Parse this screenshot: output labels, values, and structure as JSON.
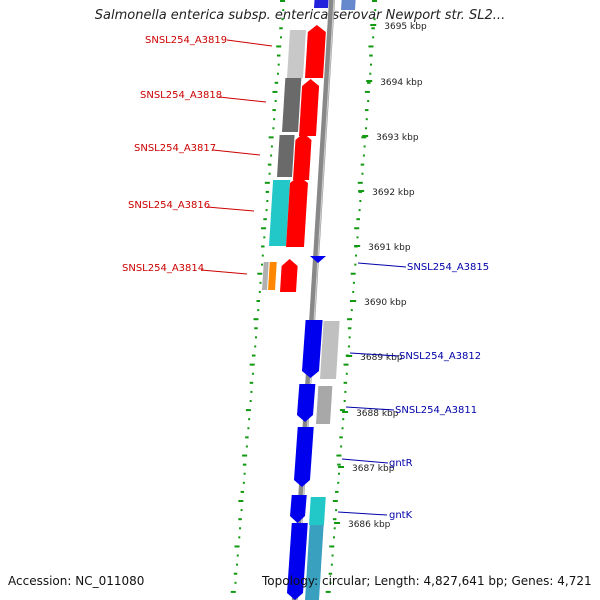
{
  "title": "Salmonella enterica subsp. enterica serovar Newport str. SL2...",
  "footer": {
    "accession": "Accession: NC_011080",
    "summary": "Topology: circular; Length: 4,827,641 bp; Genes: 4,721"
  },
  "colors": {
    "backbone": "#888888",
    "forward_cds": "#ff0000",
    "reverse_cds": "#0000ee",
    "gc_dots": "#119911",
    "label_forward": "#cc0000",
    "label_reverse": "#0000aa"
  },
  "ticks": [
    {
      "label": "3695 kbp"
    },
    {
      "label": "3694 kbp"
    },
    {
      "label": "3693 kbp"
    },
    {
      "label": "3692 kbp"
    },
    {
      "label": "3691 kbp"
    },
    {
      "label": "3690 kbp"
    },
    {
      "label": "3689 kbp"
    },
    {
      "label": "3688 kbp"
    },
    {
      "label": "3687 kbp"
    },
    {
      "label": "3686 kbp"
    }
  ],
  "genes_forward": [
    {
      "label": "SNSL254_A3819"
    },
    {
      "label": "SNSL254_A3818"
    },
    {
      "label": "SNSL254_A3817"
    },
    {
      "label": "SNSL254_A3816"
    },
    {
      "label": "SNSL254_A3814"
    }
  ],
  "genes_reverse": [
    {
      "label": "SNSL254_A3815"
    },
    {
      "label": "SNSL254_A3812"
    },
    {
      "label": "SNSL254_A3811"
    },
    {
      "label": "gntR"
    },
    {
      "label": "gntK"
    }
  ]
}
